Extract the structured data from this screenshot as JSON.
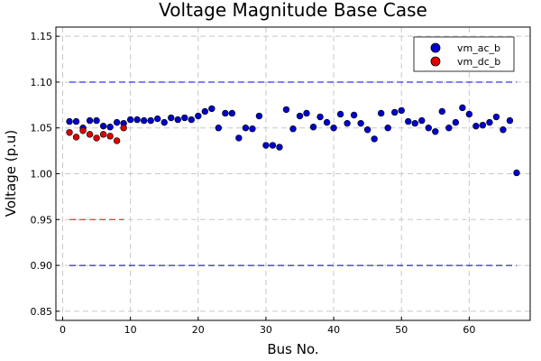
{
  "chart_data": {
    "type": "scatter",
    "title": "Voltage Magnitude Base Case",
    "xlabel": "Bus No.",
    "ylabel": "Voltage (p.u)",
    "xlim": [
      -1,
      69
    ],
    "ylim": [
      0.84,
      1.16
    ],
    "xticks": [
      0,
      10,
      20,
      30,
      40,
      50,
      60
    ],
    "xtick_labels": [
      "0",
      "10",
      "20",
      "30",
      "40",
      "50",
      "60"
    ],
    "yticks": [
      0.85,
      0.9,
      0.95,
      1.0,
      1.05,
      1.1,
      1.15
    ],
    "ytick_labels": [
      "0.85",
      "0.90",
      "0.95",
      "1.00",
      "1.05",
      "1.10",
      "1.15"
    ],
    "grid": true,
    "legend_position": "top-right",
    "reference_lines": [
      {
        "y": 1.1,
        "x_start": 1,
        "x_end": 67,
        "color": "#0000ff"
      },
      {
        "y": 0.9,
        "x_start": 1,
        "x_end": 67,
        "color": "#00008b"
      },
      {
        "y": 0.95,
        "x_start": 1,
        "x_end": 9,
        "color": "#ff0000"
      }
    ],
    "series": [
      {
        "name": "vm_ac_b",
        "color": "#0000cc",
        "x": [
          1,
          2,
          3,
          4,
          5,
          6,
          7,
          8,
          9,
          10,
          11,
          12,
          13,
          14,
          15,
          16,
          17,
          18,
          19,
          20,
          21,
          22,
          23,
          24,
          25,
          26,
          27,
          28,
          29,
          30,
          31,
          32,
          33,
          34,
          35,
          36,
          37,
          38,
          39,
          40,
          41,
          42,
          43,
          44,
          45,
          46,
          47,
          48,
          49,
          50,
          51,
          52,
          53,
          54,
          55,
          56,
          57,
          58,
          59,
          60,
          61,
          62,
          63,
          64,
          65,
          66,
          67
        ],
        "y": [
          1.057,
          1.057,
          1.05,
          1.058,
          1.058,
          1.052,
          1.051,
          1.056,
          1.055,
          1.059,
          1.059,
          1.058,
          1.058,
          1.06,
          1.056,
          1.061,
          1.059,
          1.061,
          1.059,
          1.063,
          1.068,
          1.071,
          1.05,
          1.066,
          1.066,
          1.039,
          1.05,
          1.049,
          1.063,
          1.031,
          1.031,
          1.029,
          1.07,
          1.049,
          1.063,
          1.066,
          1.051,
          1.062,
          1.056,
          1.05,
          1.065,
          1.055,
          1.064,
          1.055,
          1.048,
          1.038,
          1.066,
          1.05,
          1.067,
          1.069,
          1.057,
          1.055,
          1.058,
          1.05,
          1.046,
          1.068,
          1.05,
          1.056,
          1.072,
          1.065,
          1.052,
          1.053,
          1.056,
          1.062,
          1.048,
          1.058,
          1.001
        ]
      },
      {
        "name": "vm_dc_b",
        "color": "#dd0000",
        "x": [
          1,
          2,
          3,
          4,
          5,
          6,
          7,
          8,
          9
        ],
        "y": [
          1.045,
          1.04,
          1.047,
          1.043,
          1.039,
          1.043,
          1.041,
          1.036,
          1.05
        ]
      }
    ]
  }
}
